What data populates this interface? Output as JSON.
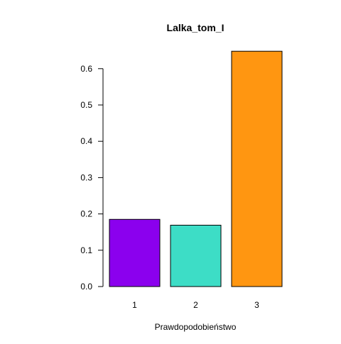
{
  "chart_data": {
    "type": "bar",
    "title": "Lalka_tom_I",
    "xlabel": "Prawdopodobieństwo",
    "ylabel": "",
    "categories": [
      "1",
      "2",
      "3"
    ],
    "values": [
      0.185,
      0.169,
      0.648
    ],
    "colors": [
      "#8B00EE",
      "#3DDDC6",
      "#FF9611"
    ],
    "ylim": [
      0,
      0.6
    ],
    "yticks": [
      "0.0",
      "0.1",
      "0.2",
      "0.3",
      "0.4",
      "0.5",
      "0.6"
    ],
    "grid": false,
    "legend": "none"
  }
}
